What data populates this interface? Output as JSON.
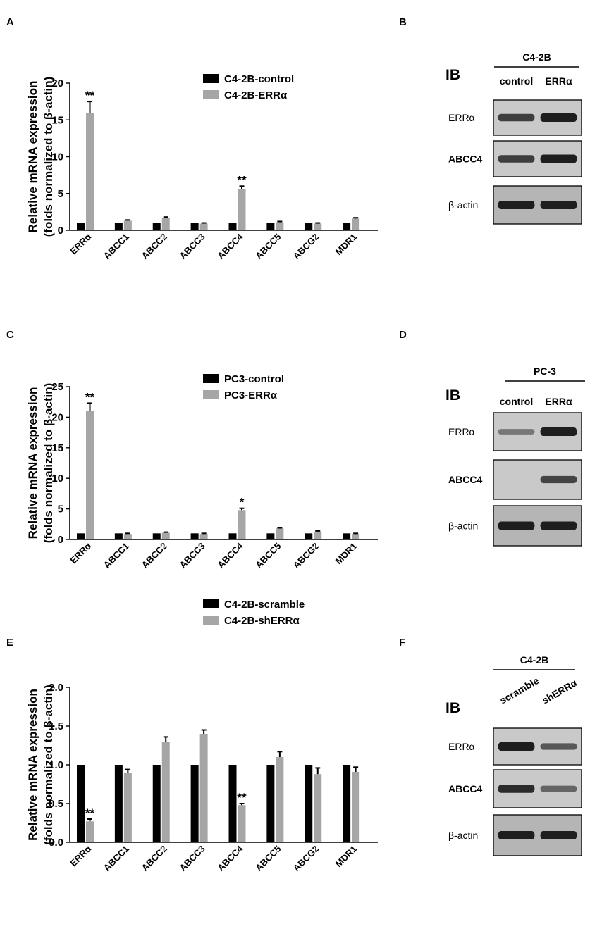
{
  "panels": {
    "A": "A",
    "B": "B",
    "C": "C",
    "D": "D",
    "E": "E",
    "F": "F"
  },
  "colors": {
    "control": "#000000",
    "treated": "#a6a6a6",
    "blot_bg": "#c9c9c9",
    "band": "#1e1e1e"
  },
  "chart_data": [
    {
      "panel": "A",
      "type": "bar",
      "ylabel": "Relative mRNA expression",
      "ylabel2": "(folds normalized to β-actin)",
      "ylim": [
        0,
        20
      ],
      "yticks": [
        "0",
        "5",
        "10",
        "15",
        "20"
      ],
      "categories": [
        "ERRα",
        "ABCC1",
        "ABCC2",
        "ABCC3",
        "ABCC4",
        "ABCC5",
        "ABCG2",
        "MDR1"
      ],
      "series": [
        {
          "name": "C4-2B-control",
          "values": [
            1,
            1,
            1,
            1,
            1,
            1,
            1,
            1
          ],
          "errors": [
            0,
            0,
            0,
            0,
            0,
            0,
            0,
            0
          ]
        },
        {
          "name": "C4-2B-ERRα",
          "values": [
            15.9,
            1.3,
            1.7,
            0.9,
            5.6,
            1.1,
            0.9,
            1.6
          ],
          "errors": [
            1.6,
            0.1,
            0.1,
            0.1,
            0.4,
            0.1,
            0.1,
            0.1
          ]
        }
      ],
      "significance": [
        {
          "category": "ERRα",
          "label": "**"
        },
        {
          "category": "ABCC4",
          "label": "**"
        }
      ],
      "legend": "top-right"
    },
    {
      "panel": "C",
      "type": "bar",
      "ylabel": "Relative mRNA expression",
      "ylabel2": "(folds normalized to β-actin)",
      "ylim": [
        0,
        25
      ],
      "yticks": [
        "0",
        "5",
        "10",
        "15",
        "20",
        "25"
      ],
      "categories": [
        "ERRα",
        "ABCC1",
        "ABCC2",
        "ABCC3",
        "ABCC4",
        "ABCC5",
        "ABCG2",
        "MDR1"
      ],
      "series": [
        {
          "name": "PC3-control",
          "values": [
            1,
            1,
            1,
            1,
            1,
            1,
            1,
            1
          ],
          "errors": [
            0,
            0,
            0,
            0,
            0,
            0,
            0,
            0
          ]
        },
        {
          "name": "PC3-ERRα",
          "values": [
            21.0,
            0.9,
            1.1,
            0.9,
            4.8,
            1.8,
            1.3,
            0.9
          ],
          "errors": [
            1.3,
            0.1,
            0.1,
            0.1,
            0.3,
            0.1,
            0.1,
            0.1
          ]
        }
      ],
      "significance": [
        {
          "category": "ERRα",
          "label": "**"
        },
        {
          "category": "ABCC4",
          "label": "*"
        }
      ],
      "legend": "top-right"
    },
    {
      "panel": "E",
      "type": "bar",
      "ylabel": "Relative mRNA expression",
      "ylabel2": "(folds normalized to β-actin)",
      "ylim": [
        0,
        2.0
      ],
      "yticks": [
        "0.0",
        "0.5",
        "1.0",
        "1.5",
        "2.0"
      ],
      "categories": [
        "ERRα",
        "ABCC1",
        "ABCC2",
        "ABCC3",
        "ABCC4",
        "ABCC5",
        "ABCG2",
        "MDR1"
      ],
      "series": [
        {
          "name": "C4-2B-scramble",
          "values": [
            1,
            1,
            1,
            1,
            1,
            1,
            1,
            1
          ],
          "errors": [
            0,
            0,
            0,
            0,
            0,
            0,
            0,
            0
          ]
        },
        {
          "name": "C4-2B-shERRα",
          "values": [
            0.27,
            0.9,
            1.3,
            1.4,
            0.48,
            1.1,
            0.88,
            0.91
          ],
          "errors": [
            0.03,
            0.04,
            0.06,
            0.05,
            0.02,
            0.07,
            0.08,
            0.06
          ]
        }
      ],
      "significance": [
        {
          "category": "ERRα",
          "label": "**"
        },
        {
          "category": "ABCC4",
          "label": "**"
        }
      ],
      "legend": "top-right"
    }
  ],
  "blots": [
    {
      "panel": "B",
      "cell_line": "C4-2B",
      "ib": "IB",
      "lanes": [
        "control",
        "ERRα"
      ],
      "rows": [
        {
          "label": "ERRα",
          "intensity": [
            0.75,
            1.0
          ]
        },
        {
          "label": "ABCC4",
          "intensity": [
            0.75,
            1.0
          ]
        },
        {
          "label": "β-actin",
          "intensity": [
            1.0,
            1.0
          ]
        }
      ]
    },
    {
      "panel": "D",
      "cell_line": "PC-3",
      "ib": "IB",
      "lanes": [
        "control",
        "ERRα"
      ],
      "rows": [
        {
          "label": "ERRα",
          "intensity": [
            0.3,
            1.0
          ]
        },
        {
          "label": "ABCC4",
          "intensity": [
            0.0,
            0.7
          ]
        },
        {
          "label": "β-actin",
          "intensity": [
            1.0,
            1.0
          ]
        }
      ]
    },
    {
      "panel": "F",
      "cell_line": "C4-2B",
      "ib": "IB",
      "lanes": [
        "scramble",
        "shERRα"
      ],
      "rows": [
        {
          "label": "ERRα",
          "intensity": [
            1.0,
            0.55
          ]
        },
        {
          "label": "ABCC4",
          "intensity": [
            0.9,
            0.45
          ]
        },
        {
          "label": "β-actin",
          "intensity": [
            1.0,
            1.0
          ]
        }
      ]
    }
  ]
}
